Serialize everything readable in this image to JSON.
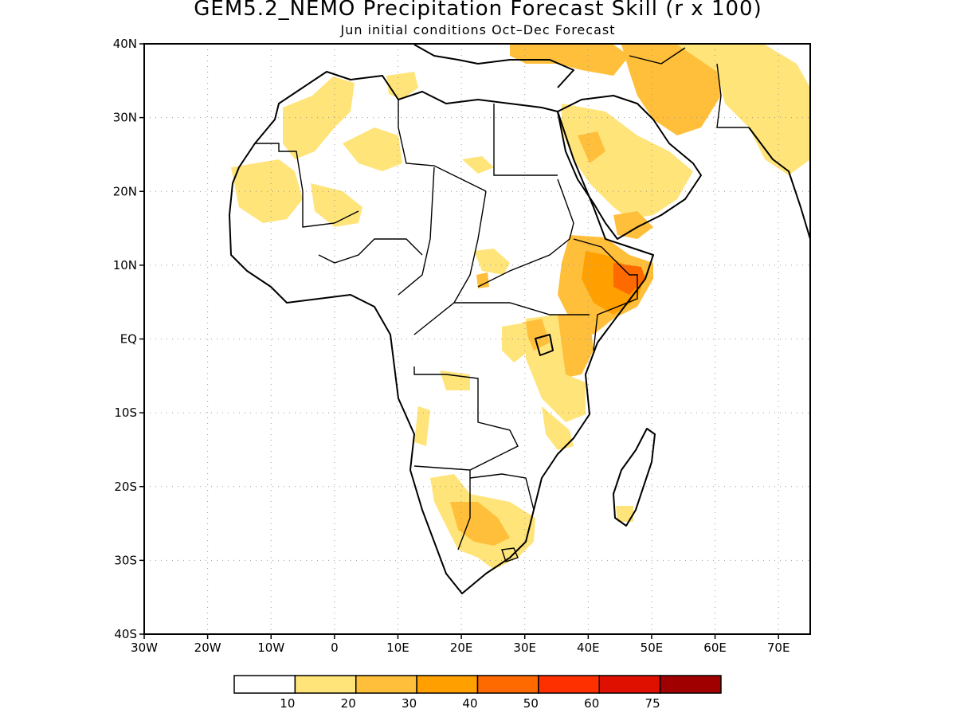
{
  "title": "GEM5.2_NEMO Precipitation Forecast Skill (r x 100)",
  "subtitle": "Jun initial conditions  Oct–Dec Forecast",
  "map": {
    "lon_range": [
      -30,
      75
    ],
    "lat_range": [
      -40,
      40
    ],
    "lat_ticks": [
      {
        "value": 40,
        "label": "40N"
      },
      {
        "value": 30,
        "label": "30N"
      },
      {
        "value": 20,
        "label": "20N"
      },
      {
        "value": 10,
        "label": "10N"
      },
      {
        "value": 0,
        "label": "EQ"
      },
      {
        "value": -10,
        "label": "10S"
      },
      {
        "value": -20,
        "label": "20S"
      },
      {
        "value": -30,
        "label": "30S"
      },
      {
        "value": -40,
        "label": "40S"
      }
    ],
    "lon_ticks": [
      {
        "value": -30,
        "label": "30W"
      },
      {
        "value": -20,
        "label": "20W"
      },
      {
        "value": -10,
        "label": "10W"
      },
      {
        "value": 0,
        "label": "0"
      },
      {
        "value": 10,
        "label": "10E"
      },
      {
        "value": 20,
        "label": "20E"
      },
      {
        "value": 30,
        "label": "30E"
      },
      {
        "value": 40,
        "label": "40E"
      },
      {
        "value": 50,
        "label": "50E"
      },
      {
        "value": 60,
        "label": "60E"
      },
      {
        "value": 70,
        "label": "70E"
      }
    ],
    "grid": "dotted"
  },
  "legend": {
    "colors": [
      "#ffffff",
      "#ffe47a",
      "#ffbf3a",
      "#ffa000",
      "#ff6a00",
      "#ff3000",
      "#e01000",
      "#a00000"
    ],
    "labels": [
      "10",
      "20",
      "30",
      "40",
      "50",
      "60",
      "75"
    ]
  }
}
